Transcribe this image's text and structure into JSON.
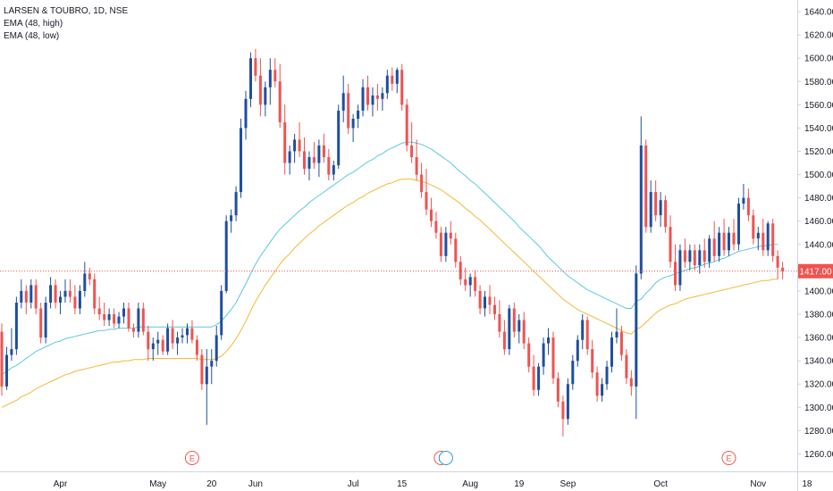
{
  "legend": {
    "title": "LARSEN & TOUBRO, 1D, NSE",
    "ema_high": "EMA (48, high)",
    "ema_low": "EMA (48, low)"
  },
  "colors": {
    "up": "#1f4e9e",
    "down": "#ef5350",
    "ema_high": "#5bc8e0",
    "ema_low": "#f7b733",
    "price_line": "#ef5350",
    "price_badge": "#ef5350",
    "earnings": "#ef5350",
    "dividend": "#2196f3"
  },
  "chart_data": {
    "type": "candlestick",
    "title": "LARSEN & TOUBRO, 1D, NSE",
    "ylim": [
      1245,
      1650
    ],
    "y_ticks": [
      1260,
      1280,
      1300,
      1320,
      1340,
      1360,
      1380,
      1400,
      1420,
      1440,
      1460,
      1480,
      1500,
      1520,
      1540,
      1560,
      1580,
      1600,
      1620,
      1640
    ],
    "y_tick_labels": [
      "1260.00",
      "1280.00",
      "1300.00",
      "1320.00",
      "1340.00",
      "1360.00",
      "1380.00",
      "1400.00",
      "1420.00",
      "1440.00",
      "1460.00",
      "1480.00",
      "1500.00",
      "1520.00",
      "1540.00",
      "1560.00",
      "1580.00",
      "1600.00",
      "1620.00",
      "1640.00"
    ],
    "x_labels": [
      {
        "label": "Apr",
        "i": 12
      },
      {
        "label": "May",
        "i": 32
      },
      {
        "label": "20",
        "i": 43
      },
      {
        "label": "Jun",
        "i": 52
      },
      {
        "label": "Jul",
        "i": 72
      },
      {
        "label": "15",
        "i": 82
      },
      {
        "label": "Aug",
        "i": 96
      },
      {
        "label": "19",
        "i": 106
      },
      {
        "label": "Sep",
        "i": 116
      },
      {
        "label": "Oct",
        "i": 135
      },
      {
        "label": "Nov",
        "i": 155
      },
      {
        "label": "18",
        "i": 165
      }
    ],
    "last_price": 1417,
    "last_price_label": "1417.00",
    "markers": [
      {
        "type": "earnings",
        "label": "E",
        "i": 39
      },
      {
        "type": "earnings",
        "label": "E",
        "i": 90
      },
      {
        "type": "dividend",
        "label": "",
        "i": 91
      },
      {
        "type": "earnings",
        "label": "E",
        "i": 149
      }
    ],
    "ohlc": [
      [
        1365,
        1372,
        1310,
        1318
      ],
      [
        1318,
        1352,
        1315,
        1345
      ],
      [
        1345,
        1368,
        1340,
        1350
      ],
      [
        1350,
        1395,
        1345,
        1390
      ],
      [
        1390,
        1410,
        1385,
        1400
      ],
      [
        1400,
        1405,
        1380,
        1390
      ],
      [
        1390,
        1410,
        1385,
        1405
      ],
      [
        1405,
        1410,
        1380,
        1385
      ],
      [
        1385,
        1390,
        1355,
        1360
      ],
      [
        1360,
        1395,
        1355,
        1390
      ],
      [
        1390,
        1412,
        1385,
        1405
      ],
      [
        1405,
        1410,
        1385,
        1390
      ],
      [
        1390,
        1400,
        1380,
        1395
      ],
      [
        1395,
        1410,
        1390,
        1400
      ],
      [
        1400,
        1410,
        1390,
        1395
      ],
      [
        1395,
        1405,
        1380,
        1385
      ],
      [
        1385,
        1405,
        1380,
        1400
      ],
      [
        1400,
        1425,
        1395,
        1415
      ],
      [
        1415,
        1420,
        1405,
        1410
      ],
      [
        1410,
        1415,
        1380,
        1385
      ],
      [
        1385,
        1395,
        1375,
        1380
      ],
      [
        1380,
        1390,
        1370,
        1375
      ],
      [
        1375,
        1385,
        1370,
        1380
      ],
      [
        1380,
        1385,
        1368,
        1372
      ],
      [
        1372,
        1382,
        1368,
        1378
      ],
      [
        1378,
        1390,
        1372,
        1385
      ],
      [
        1385,
        1390,
        1365,
        1368
      ],
      [
        1368,
        1372,
        1360,
        1365
      ],
      [
        1365,
        1390,
        1360,
        1385
      ],
      [
        1385,
        1390,
        1362,
        1365
      ],
      [
        1365,
        1370,
        1340,
        1350
      ],
      [
        1350,
        1360,
        1340,
        1355
      ],
      [
        1355,
        1365,
        1345,
        1358
      ],
      [
        1358,
        1362,
        1345,
        1348
      ],
      [
        1348,
        1372,
        1345,
        1368
      ],
      [
        1368,
        1375,
        1350,
        1355
      ],
      [
        1355,
        1365,
        1345,
        1360
      ],
      [
        1360,
        1368,
        1355,
        1362
      ],
      [
        1362,
        1372,
        1355,
        1368
      ],
      [
        1368,
        1375,
        1355,
        1358
      ],
      [
        1358,
        1362,
        1340,
        1345
      ],
      [
        1345,
        1350,
        1315,
        1320
      ],
      [
        1320,
        1350,
        1285,
        1335
      ],
      [
        1335,
        1350,
        1320,
        1340
      ],
      [
        1340,
        1370,
        1335,
        1362
      ],
      [
        1362,
        1405,
        1358,
        1400
      ],
      [
        1400,
        1465,
        1398,
        1460
      ],
      [
        1460,
        1470,
        1450,
        1465
      ],
      [
        1465,
        1490,
        1460,
        1485
      ],
      [
        1485,
        1548,
        1480,
        1540
      ],
      [
        1540,
        1572,
        1530,
        1565
      ],
      [
        1565,
        1605,
        1558,
        1600
      ],
      [
        1600,
        1608,
        1580,
        1585
      ],
      [
        1585,
        1600,
        1550,
        1560
      ],
      [
        1560,
        1580,
        1550,
        1575
      ],
      [
        1575,
        1600,
        1560,
        1590
      ],
      [
        1590,
        1600,
        1575,
        1580
      ],
      [
        1580,
        1595,
        1540,
        1545
      ],
      [
        1545,
        1560,
        1500,
        1510
      ],
      [
        1510,
        1525,
        1500,
        1520
      ],
      [
        1520,
        1535,
        1510,
        1530
      ],
      [
        1530,
        1545,
        1515,
        1520
      ],
      [
        1520,
        1532,
        1500,
        1505
      ],
      [
        1505,
        1520,
        1495,
        1515
      ],
      [
        1515,
        1528,
        1505,
        1510
      ],
      [
        1510,
        1530,
        1498,
        1525
      ],
      [
        1525,
        1535,
        1510,
        1515
      ],
      [
        1515,
        1522,
        1495,
        1500
      ],
      [
        1500,
        1512,
        1495,
        1508
      ],
      [
        1508,
        1560,
        1505,
        1555
      ],
      [
        1555,
        1585,
        1545,
        1570
      ],
      [
        1570,
        1578,
        1535,
        1540
      ],
      [
        1540,
        1552,
        1528,
        1548
      ],
      [
        1548,
        1560,
        1540,
        1555
      ],
      [
        1555,
        1582,
        1550,
        1575
      ],
      [
        1575,
        1585,
        1555,
        1560
      ],
      [
        1560,
        1575,
        1550,
        1568
      ],
      [
        1568,
        1578,
        1555,
        1565
      ],
      [
        1565,
        1575,
        1555,
        1570
      ],
      [
        1570,
        1590,
        1565,
        1585
      ],
      [
        1585,
        1592,
        1572,
        1578
      ],
      [
        1578,
        1592,
        1570,
        1590
      ],
      [
        1590,
        1595,
        1555,
        1560
      ],
      [
        1560,
        1565,
        1520,
        1525
      ],
      [
        1525,
        1545,
        1510,
        1515
      ],
      [
        1515,
        1530,
        1495,
        1500
      ],
      [
        1500,
        1510,
        1480,
        1485
      ],
      [
        1485,
        1505,
        1465,
        1470
      ],
      [
        1470,
        1480,
        1455,
        1460
      ],
      [
        1460,
        1468,
        1445,
        1450
      ],
      [
        1450,
        1455,
        1425,
        1430
      ],
      [
        1430,
        1455,
        1425,
        1450
      ],
      [
        1450,
        1460,
        1440,
        1445
      ],
      [
        1445,
        1450,
        1420,
        1425
      ],
      [
        1425,
        1430,
        1405,
        1410
      ],
      [
        1410,
        1420,
        1400,
        1405
      ],
      [
        1405,
        1415,
        1395,
        1412
      ],
      [
        1412,
        1418,
        1395,
        1400
      ],
      [
        1400,
        1405,
        1380,
        1385
      ],
      [
        1385,
        1400,
        1378,
        1395
      ],
      [
        1395,
        1405,
        1380,
        1388
      ],
      [
        1388,
        1395,
        1375,
        1380
      ],
      [
        1380,
        1392,
        1360,
        1365
      ],
      [
        1365,
        1375,
        1345,
        1350
      ],
      [
        1350,
        1388,
        1345,
        1385
      ],
      [
        1385,
        1390,
        1360,
        1365
      ],
      [
        1365,
        1380,
        1355,
        1375
      ],
      [
        1375,
        1382,
        1350,
        1355
      ],
      [
        1355,
        1360,
        1330,
        1335
      ],
      [
        1335,
        1345,
        1310,
        1315
      ],
      [
        1315,
        1338,
        1310,
        1335
      ],
      [
        1335,
        1360,
        1328,
        1355
      ],
      [
        1355,
        1368,
        1345,
        1360
      ],
      [
        1360,
        1365,
        1320,
        1325
      ],
      [
        1325,
        1330,
        1300,
        1305
      ],
      [
        1305,
        1310,
        1275,
        1290
      ],
      [
        1290,
        1325,
        1285,
        1320
      ],
      [
        1320,
        1345,
        1315,
        1340
      ],
      [
        1340,
        1362,
        1335,
        1358
      ],
      [
        1358,
        1380,
        1350,
        1375
      ],
      [
        1375,
        1378,
        1345,
        1350
      ],
      [
        1350,
        1358,
        1325,
        1330
      ],
      [
        1330,
        1335,
        1305,
        1310
      ],
      [
        1310,
        1325,
        1305,
        1320
      ],
      [
        1320,
        1340,
        1315,
        1335
      ],
      [
        1335,
        1365,
        1330,
        1360
      ],
      [
        1360,
        1385,
        1355,
        1365
      ],
      [
        1365,
        1370,
        1340,
        1345
      ],
      [
        1345,
        1350,
        1320,
        1325
      ],
      [
        1325,
        1332,
        1310,
        1318
      ],
      [
        1318,
        1422,
        1290,
        1415
      ],
      [
        1415,
        1550,
        1410,
        1525
      ],
      [
        1525,
        1530,
        1450,
        1455
      ],
      [
        1455,
        1495,
        1450,
        1485
      ],
      [
        1485,
        1495,
        1460,
        1465
      ],
      [
        1465,
        1485,
        1455,
        1478
      ],
      [
        1478,
        1482,
        1450,
        1455
      ],
      [
        1455,
        1465,
        1420,
        1425
      ],
      [
        1425,
        1440,
        1400,
        1405
      ],
      [
        1405,
        1440,
        1400,
        1435
      ],
      [
        1435,
        1445,
        1420,
        1425
      ],
      [
        1425,
        1440,
        1418,
        1435
      ],
      [
        1435,
        1440,
        1418,
        1422
      ],
      [
        1422,
        1440,
        1415,
        1435
      ],
      [
        1435,
        1445,
        1420,
        1425
      ],
      [
        1425,
        1448,
        1420,
        1445
      ],
      [
        1445,
        1460,
        1425,
        1430
      ],
      [
        1430,
        1455,
        1425,
        1450
      ],
      [
        1450,
        1462,
        1430,
        1435
      ],
      [
        1435,
        1455,
        1430,
        1450
      ],
      [
        1450,
        1462,
        1435,
        1440
      ],
      [
        1440,
        1480,
        1435,
        1475
      ],
      [
        1475,
        1492,
        1470,
        1480
      ],
      [
        1480,
        1488,
        1460,
        1465
      ],
      [
        1465,
        1470,
        1440,
        1445
      ],
      [
        1445,
        1455,
        1435,
        1450
      ],
      [
        1450,
        1462,
        1430,
        1435
      ],
      [
        1435,
        1460,
        1430,
        1458
      ],
      [
        1458,
        1462,
        1425,
        1430
      ],
      [
        1430,
        1435,
        1410,
        1420
      ],
      [
        1420,
        1425,
        1410,
        1417
      ]
    ],
    "ema_high": [
      1328,
      1331,
      1334,
      1336,
      1339,
      1342,
      1345,
      1348,
      1350,
      1352,
      1354,
      1356,
      1357,
      1359,
      1360,
      1361,
      1362,
      1363,
      1364,
      1365,
      1366,
      1366,
      1367,
      1367,
      1368,
      1368,
      1368,
      1368,
      1369,
      1369,
      1369,
      1369,
      1369,
      1369,
      1369,
      1369,
      1369,
      1369,
      1369,
      1369,
      1369,
      1369,
      1369,
      1369,
      1371,
      1374,
      1379,
      1384,
      1390,
      1398,
      1406,
      1415,
      1423,
      1430,
      1436,
      1442,
      1448,
      1453,
      1457,
      1461,
      1465,
      1469,
      1472,
      1476,
      1479,
      1482,
      1485,
      1488,
      1491,
      1494,
      1497,
      1500,
      1502,
      1505,
      1508,
      1511,
      1513,
      1516,
      1518,
      1521,
      1523,
      1525,
      1527,
      1528,
      1528,
      1527,
      1526,
      1524,
      1522,
      1519,
      1516,
      1513,
      1510,
      1506,
      1502,
      1499,
      1495,
      1492,
      1488,
      1484,
      1480,
      1476,
      1472,
      1468,
      1464,
      1460,
      1455,
      1451,
      1447,
      1443,
      1439,
      1434,
      1429,
      1425,
      1421,
      1417,
      1413,
      1410,
      1407,
      1404,
      1401,
      1399,
      1397,
      1395,
      1393,
      1391,
      1389,
      1387,
      1385,
      1385,
      1391,
      1393,
      1398,
      1402,
      1407,
      1410,
      1412,
      1413,
      1415,
      1416,
      1418,
      1419,
      1420,
      1421,
      1423,
      1424,
      1425,
      1427,
      1428,
      1430,
      1432,
      1434,
      1435,
      1436,
      1437,
      1438,
      1439,
      1439,
      1440,
      1440
    ],
    "ema_low": [
      1300,
      1302,
      1304,
      1306,
      1309,
      1311,
      1313,
      1316,
      1318,
      1320,
      1322,
      1324,
      1326,
      1328,
      1329,
      1331,
      1332,
      1333,
      1334,
      1335,
      1336,
      1337,
      1338,
      1339,
      1339,
      1340,
      1340,
      1341,
      1341,
      1341,
      1342,
      1342,
      1342,
      1342,
      1342,
      1342,
      1342,
      1342,
      1342,
      1342,
      1342,
      1341,
      1341,
      1341,
      1342,
      1344,
      1348,
      1353,
      1359,
      1366,
      1374,
      1383,
      1391,
      1398,
      1405,
      1411,
      1417,
      1423,
      1428,
      1432,
      1437,
      1441,
      1445,
      1449,
      1452,
      1456,
      1459,
      1462,
      1465,
      1468,
      1471,
      1474,
      1476,
      1479,
      1481,
      1484,
      1486,
      1488,
      1490,
      1492,
      1493,
      1495,
      1496,
      1496,
      1496,
      1495,
      1494,
      1493,
      1491,
      1489,
      1487,
      1484,
      1481,
      1478,
      1475,
      1471,
      1468,
      1464,
      1461,
      1457,
      1453,
      1449,
      1445,
      1441,
      1437,
      1433,
      1429,
      1425,
      1421,
      1417,
      1413,
      1409,
      1405,
      1401,
      1397,
      1393,
      1390,
      1387,
      1384,
      1382,
      1380,
      1378,
      1376,
      1374,
      1372,
      1370,
      1368,
      1366,
      1364,
      1363,
      1367,
      1369,
      1373,
      1377,
      1381,
      1384,
      1386,
      1388,
      1389,
      1391,
      1393,
      1394,
      1395,
      1396,
      1397,
      1398,
      1399,
      1400,
      1401,
      1402,
      1403,
      1404,
      1405,
      1406,
      1407,
      1408,
      1409,
      1409,
      1410,
      1410
    ]
  }
}
